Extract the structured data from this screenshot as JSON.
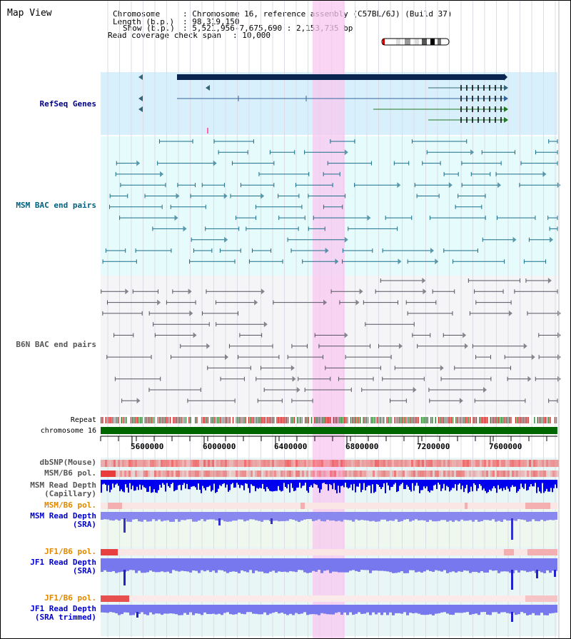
{
  "view_title": "Map View",
  "info": {
    "chromosome_key": "Chromosome",
    "chromosome_val": ": Chromosome 16, reference assembly (C57BL/6J) (Build 37)",
    "length_key": "Length (b.p.)",
    "length_val": ": 98,319,150",
    "show_key": "Show (b.p.)",
    "show_val": ": 5,521,956-7,675,690 : 2,153,735 bp",
    "coverage_key": "Read coverage check span",
    "coverage_val": ": 10,000"
  },
  "tracks": {
    "refseq": "RefSeq Genes",
    "msm_bac": "MSM BAC end pairs",
    "b6n_bac": "B6N BAC end pairs",
    "repeat": "Repeat",
    "chromosome": "chromosome 16",
    "dbsnp": "dbSNP(Mouse)",
    "msm_pol": "MSM/B6 pol.",
    "msm_depth_cap_1": "MSM Read Depth",
    "msm_depth_cap_2": "(Capillary)",
    "msm_pol_2": "MSM/B6 pol.",
    "msm_depth_sra_1": "MSM Read Depth",
    "msm_depth_sra_2": "(SRA)",
    "jf1_pol": "JF1/B6 pol.",
    "jf1_depth_sra_1": "JF1 Read Depth",
    "jf1_depth_sra_2": "(SRA)",
    "jf1_pol_2": "JF1/B6 pol.",
    "jf1_depth_trim_1": "JF1 Read Depth",
    "jf1_depth_trim_2": "(SRA trimmed)"
  },
  "axis_ticks": [
    "5600000",
    "6000000",
    "6400000",
    "6800000",
    "7200000",
    "7600000"
  ],
  "colors": {
    "refseq_bg": "#d8f0fb",
    "msm_bg": "#e6fbfb",
    "b6n_bg": "#f5f5f7",
    "highlight": "#f8c8f0",
    "chrom_bar": "#006600",
    "refseq_label": "#00008b",
    "msm_label": "#006080",
    "b6n_label": "#555555",
    "pol_label": "#e08800",
    "depth_label": "#0000cc"
  }
}
